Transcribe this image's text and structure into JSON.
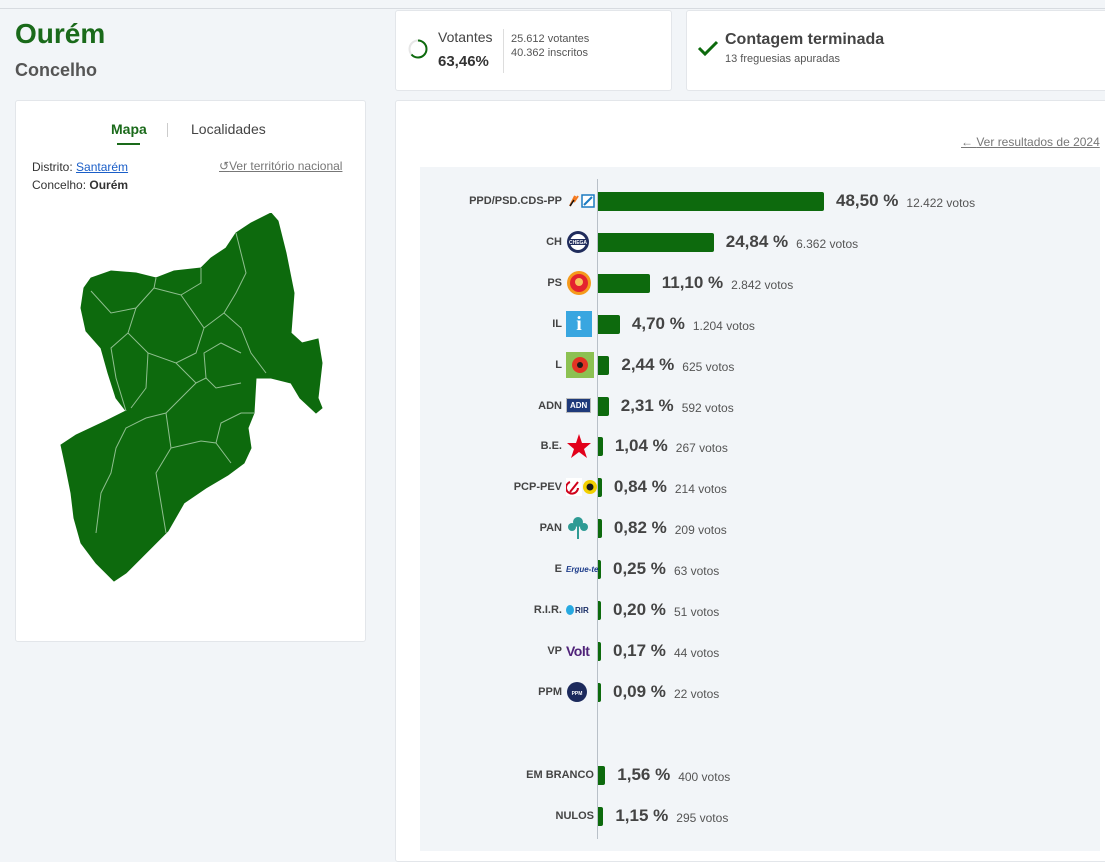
{
  "header": {
    "title": "Ourém",
    "subtitle": "Concelho"
  },
  "votantes": {
    "label": "Votantes",
    "percent": "63,46%",
    "votantes": "25.612 votantes",
    "inscritos": "40.362 inscritos",
    "ring_fraction": 0.6346
  },
  "contagem": {
    "title": "Contagem terminada",
    "subtitle": "13 freguesias apuradas"
  },
  "map_panel": {
    "tab_mapa": "Mapa",
    "tab_localidades": "Localidades",
    "distrito_label": "Distrito:",
    "distrito_value": "Santarém",
    "concelho_label": "Concelho:",
    "concelho_value": "Ourém",
    "ver_nacional": "Ver território nacional",
    "map_color": "#0d6a0d"
  },
  "results": {
    "ver_anterior": "Ver resultados de 2024",
    "bar_color": "#0d6a0d",
    "max_percent": 48.5,
    "rows": [
      {
        "party": "PPD/PSD.CDS-PP",
        "percent": 48.5,
        "percent_text": "48,50 %",
        "votes_text": "12.422 votos",
        "logo": "psd-cds-logo-icon"
      },
      {
        "party": "CH",
        "percent": 24.84,
        "percent_text": "24,84 %",
        "votes_text": "6.362 votos",
        "logo": "chega-logo-icon"
      },
      {
        "party": "PS",
        "percent": 11.1,
        "percent_text": "11,10 %",
        "votes_text": "2.842 votos",
        "logo": "ps-fist-logo-icon"
      },
      {
        "party": "IL",
        "percent": 4.7,
        "percent_text": "4,70 %",
        "votes_text": "1.204 votos",
        "logo": "il-logo-icon"
      },
      {
        "party": "L",
        "percent": 2.44,
        "percent_text": "2,44 %",
        "votes_text": "625 votos",
        "logo": "livre-poppy-logo-icon"
      },
      {
        "party": "ADN",
        "percent": 2.31,
        "percent_text": "2,31 %",
        "votes_text": "592 votos",
        "logo": "adn-logo-icon"
      },
      {
        "party": "B.E.",
        "percent": 1.04,
        "percent_text": "1,04 %",
        "votes_text": "267 votos",
        "logo": "be-star-logo-icon"
      },
      {
        "party": "PCP-PEV",
        "percent": 0.84,
        "percent_text": "0,84 %",
        "votes_text": "214 votos",
        "logo": "cdu-logo-icon"
      },
      {
        "party": "PAN",
        "percent": 0.82,
        "percent_text": "0,82 %",
        "votes_text": "209 votos",
        "logo": "pan-tree-logo-icon"
      },
      {
        "party": "E",
        "percent": 0.25,
        "percent_text": "0,25 %",
        "votes_text": "63 votos",
        "logo": "ergue-te-logo-icon"
      },
      {
        "party": "R.I.R.",
        "percent": 0.2,
        "percent_text": "0,20 %",
        "votes_text": "51 votos",
        "logo": "rir-logo-icon"
      },
      {
        "party": "VP",
        "percent": 0.17,
        "percent_text": "0,17 %",
        "votes_text": "44 votos",
        "logo": "volt-logo-icon"
      },
      {
        "party": "PPM",
        "percent": 0.09,
        "percent_text": "0,09 %",
        "votes_text": "22 votos",
        "logo": "ppm-logo-icon"
      }
    ],
    "extra_rows": [
      {
        "party": "EM BRANCO",
        "percent": 1.56,
        "percent_text": "1,56 %",
        "votes_text": "400 votos"
      },
      {
        "party": "NULOS",
        "percent": 1.15,
        "percent_text": "1,15 %",
        "votes_text": "295 votos"
      }
    ]
  },
  "logo_text": {
    "chega": "CHEGA",
    "il": "i",
    "adn": "ADN",
    "ergue": "Ergue-te",
    "rir": "RIR",
    "volt": "Volt",
    "ppm": "PPM"
  }
}
